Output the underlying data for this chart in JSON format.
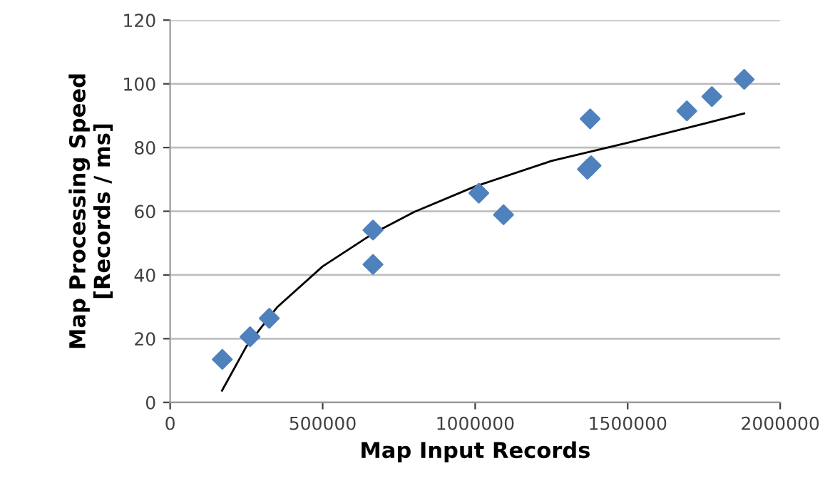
{
  "chart_data": {
    "type": "scatter",
    "xlabel": "Map Input Records",
    "ylabel": "Map Processing Speed\n[Records / ms]",
    "xlim": [
      0,
      2000000
    ],
    "xticks": [
      0,
      500000,
      1000000,
      1500000,
      2000000
    ],
    "ylim": [
      0,
      120
    ],
    "yticks": [
      0,
      20,
      40,
      60,
      80,
      100,
      120
    ],
    "grid": "y",
    "legend": false,
    "marker": "diamond",
    "x": [
      171000,
      262000,
      325000,
      665000,
      665000,
      1012000,
      1093000,
      1368000,
      1380000,
      1377000,
      1694000,
      1776000,
      1882000
    ],
    "series": [
      {
        "color": "#4f81bd",
        "values": [
          13.5,
          20.6,
          26.4,
          54.1,
          43.3,
          65.7,
          58.9,
          73.2,
          74.3,
          89.0,
          91.5,
          96.0,
          101.4
        ]
      },
      {
        "type": "line",
        "color": "#000000",
        "marker": "none",
        "line_style": "solid",
        "x": [
          170000,
          250000,
          350000,
          500000,
          665000,
          800000,
          1000000,
          1250000,
          1500000,
          1750000,
          1882000
        ],
        "values": [
          3.7,
          17.6,
          29.8,
          42.7,
          53.0,
          59.8,
          67.8,
          75.8,
          81.5,
          87.5,
          90.7
        ]
      }
    ]
  }
}
